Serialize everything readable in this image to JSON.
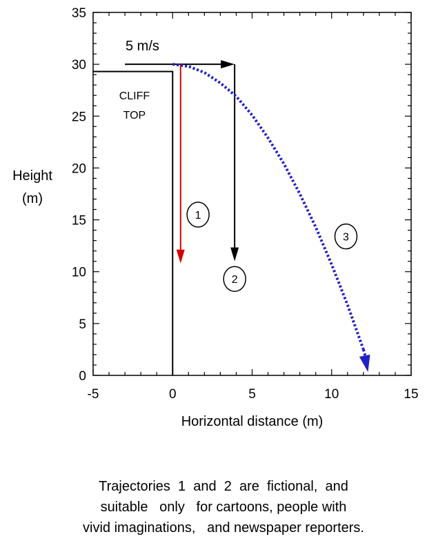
{
  "chart_data": {
    "type": "line",
    "xlabel": "Horizontal  distance  (m)",
    "ylabel": [
      "Height",
      "(m)"
    ],
    "xlim": [
      -5,
      15
    ],
    "ylim": [
      0,
      35
    ],
    "xticks": [
      -5,
      0,
      5,
      10,
      15
    ],
    "yticks": [
      0,
      5,
      10,
      15,
      20,
      25,
      30,
      35
    ],
    "grid": false,
    "cliff": {
      "label": [
        "CLIFF",
        "TOP"
      ],
      "outline": [
        {
          "x": -5,
          "y": 29.3
        },
        {
          "x": 0,
          "y": 29.3
        },
        {
          "x": 0,
          "y": 0
        }
      ]
    },
    "velocity_arrow": {
      "label": "5  m/s",
      "x0": -3,
      "x1": 3.9,
      "y": 30
    },
    "series": [
      {
        "name": "1",
        "color": "#d40000",
        "style": "solid",
        "x": [
          0.5,
          0.5
        ],
        "y": [
          30,
          10.8
        ],
        "marker_label_pos": {
          "x": 1.6,
          "y": 15.5
        }
      },
      {
        "name": "2",
        "color": "#000000",
        "style": "solid",
        "x": [
          3.9,
          3.9
        ],
        "y": [
          30,
          11.0
        ],
        "marker_label_pos": {
          "x": 3.9,
          "y": 9.3
        }
      },
      {
        "name": "3",
        "color": "#2020c8",
        "style": "dotted",
        "x": [
          0,
          1,
          2,
          3,
          4,
          5,
          6,
          7,
          8,
          9,
          10,
          11,
          12,
          12.2
        ],
        "y": [
          30,
          29.8,
          29.2,
          28.2,
          26.9,
          25.1,
          22.9,
          20.4,
          17.5,
          14.3,
          10.7,
          6.8,
          2.5,
          1.0
        ],
        "marker_label_pos": {
          "x": 10.9,
          "y": 13.4
        }
      }
    ]
  },
  "caption": [
    "Trajectories  1  and  2  are  fictional,  and",
    "suitable   only   for cartoons, people with",
    "vivid imaginations,   and newspaper reporters."
  ]
}
